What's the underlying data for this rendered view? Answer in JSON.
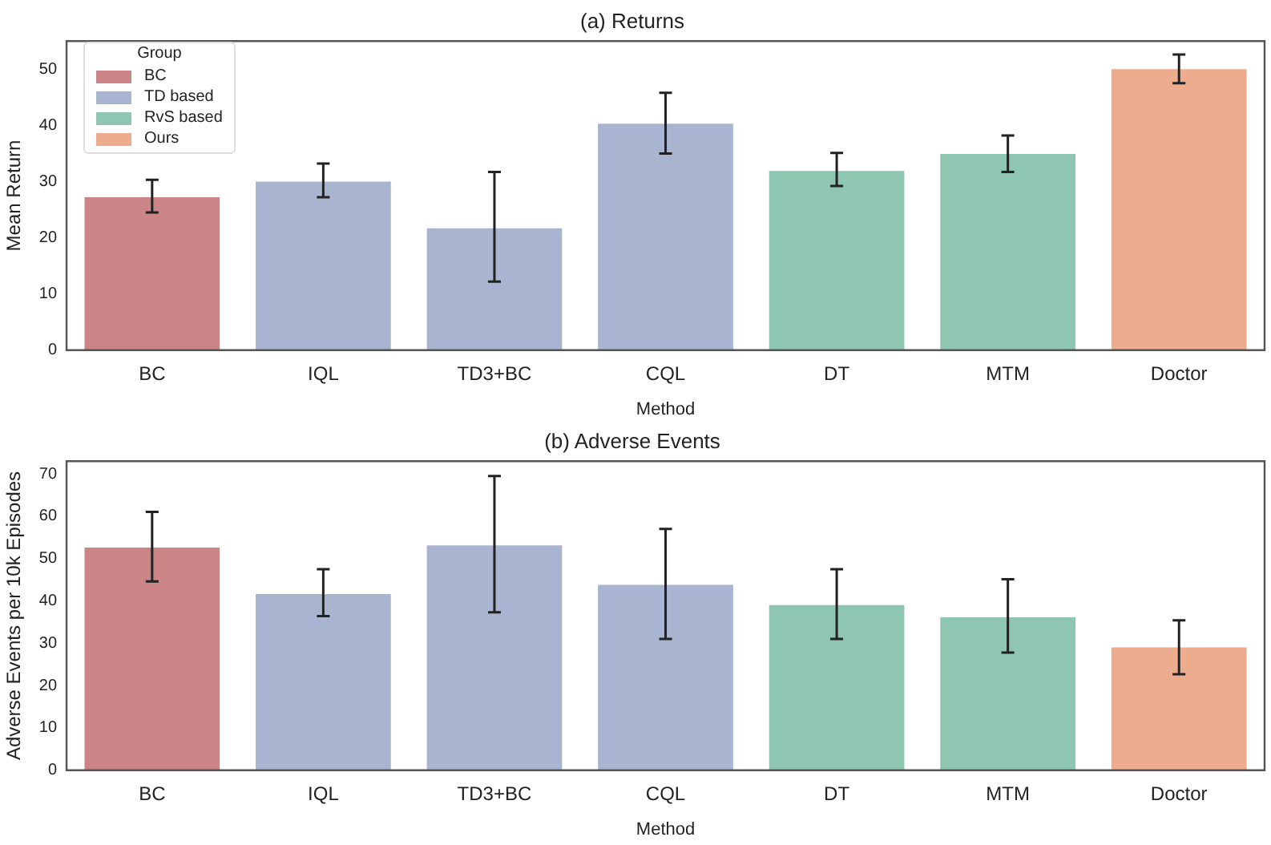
{
  "chart_data": [
    {
      "type": "bar",
      "title": "(a) Returns",
      "xlabel": "Method",
      "ylabel": "Mean Return",
      "categories": [
        "BC",
        "IQL",
        "TD3+BC",
        "CQL",
        "DT",
        "MTM",
        "Doctor"
      ],
      "legend_title": "Group",
      "legend": "top left",
      "grid": false,
      "ylim": [
        0,
        55
      ],
      "yticks": [
        0,
        10,
        20,
        30,
        40,
        50
      ],
      "series": [
        {
          "name": "BC",
          "color": "#cb8586",
          "values": [
            27.2,
            null,
            null,
            null,
            null,
            null,
            null
          ],
          "errors": [
            [
              24.5,
              30.3
            ],
            null,
            null,
            null,
            null,
            null,
            null
          ]
        },
        {
          "name": "TD based",
          "color": "#a9b5d0",
          "values": [
            null,
            30.0,
            21.7,
            40.3,
            null,
            null,
            null
          ],
          "errors": [
            null,
            [
              27.2,
              33.2
            ],
            [
              12.2,
              31.7
            ],
            [
              35.0,
              45.8
            ],
            null,
            null,
            null
          ]
        },
        {
          "name": "RvS based",
          "color": "#8fc6b2",
          "values": [
            null,
            null,
            null,
            null,
            31.9,
            34.9,
            null
          ],
          "errors": [
            null,
            null,
            null,
            null,
            [
              29.2,
              35.1
            ],
            [
              31.7,
              38.2
            ],
            null
          ]
        },
        {
          "name": "Ours",
          "color": "#eeac8f",
          "values": [
            null,
            null,
            null,
            null,
            null,
            null,
            50.0
          ],
          "errors": [
            null,
            null,
            null,
            null,
            null,
            null,
            [
              47.5,
              52.6
            ]
          ]
        }
      ]
    },
    {
      "type": "bar",
      "title": "(b) Adverse Events",
      "xlabel": "Method",
      "ylabel": "Adverse Events per 10k Episodes",
      "categories": [
        "BC",
        "IQL",
        "TD3+BC",
        "CQL",
        "DT",
        "MTM",
        "Doctor"
      ],
      "legend": false,
      "grid": false,
      "ylim": [
        0,
        73
      ],
      "yticks": [
        0,
        10,
        20,
        30,
        40,
        50,
        60,
        70
      ],
      "series": [
        {
          "color": "#cb8586",
          "values": [
            52.6,
            null,
            null,
            null,
            null,
            null,
            null
          ],
          "errors": [
            [
              44.6,
              61.0
            ],
            null,
            null,
            null,
            null,
            null,
            null
          ]
        },
        {
          "color": "#a9b5d0",
          "values": [
            null,
            41.6,
            53.1,
            43.8,
            null,
            null,
            null
          ],
          "errors": [
            null,
            [
              36.4,
              47.5
            ],
            [
              37.3,
              69.5
            ],
            [
              31.0,
              57.0
            ],
            null,
            null,
            null
          ]
        },
        {
          "color": "#8fc6b2",
          "values": [
            null,
            null,
            null,
            null,
            39.0,
            36.1,
            null
          ],
          "errors": [
            null,
            null,
            null,
            null,
            [
              31.0,
              47.5
            ],
            [
              27.8,
              45.1
            ],
            null
          ]
        },
        {
          "color": "#eeac8f",
          "values": [
            null,
            null,
            null,
            null,
            null,
            null,
            29.0
          ],
          "errors": [
            null,
            null,
            null,
            null,
            null,
            null,
            [
              22.7,
              35.4
            ]
          ]
        }
      ]
    }
  ]
}
